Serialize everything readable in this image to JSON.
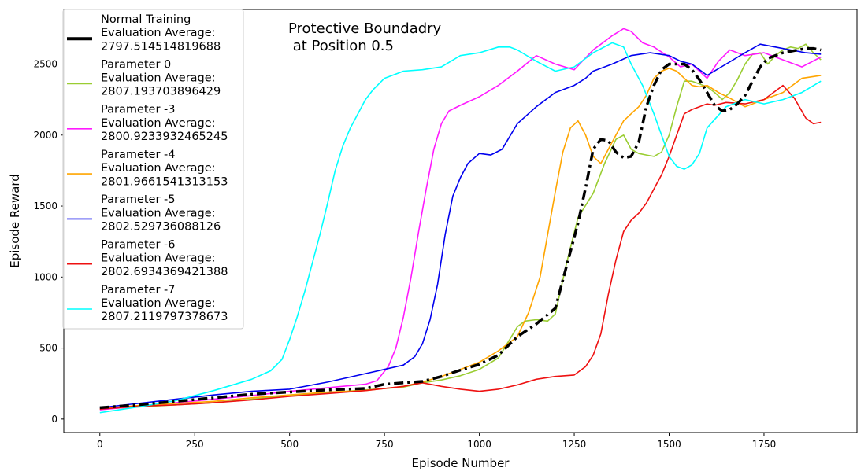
{
  "chart_data": {
    "type": "line",
    "title_lines": [
      "Protective Boundadry",
      " at Position 0.5"
    ],
    "xlabel": "Episode Number",
    "ylabel": "Episode Reward",
    "xlim": [
      -95,
      1995
    ],
    "ylim": [
      -95,
      2885
    ],
    "xticks": [
      0,
      250,
      500,
      750,
      1000,
      1250,
      1500,
      1750
    ],
    "yticks": [
      0,
      500,
      1000,
      1500,
      2000,
      2500
    ],
    "legend_position": "upper-left",
    "grid": false,
    "series": [
      {
        "name": "Normal Training",
        "legend_lines": [
          "Normal Training",
          " Evaluation Average:",
          "2797.514514819688"
        ],
        "color": "#000000",
        "style": "dashdot",
        "width": 3.5,
        "x": [
          0,
          100,
          200,
          300,
          400,
          500,
          600,
          700,
          750,
          800,
          850,
          900,
          950,
          1000,
          1050,
          1100,
          1150,
          1200,
          1230,
          1260,
          1280,
          1300,
          1320,
          1340,
          1360,
          1380,
          1400,
          1420,
          1440,
          1460,
          1480,
          1500,
          1520,
          1540,
          1560,
          1580,
          1600,
          1620,
          1640,
          1660,
          1680,
          1700,
          1720,
          1740,
          1760,
          1780,
          1800,
          1820,
          1840,
          1860,
          1880,
          1900
        ],
        "y": [
          80,
          100,
          125,
          150,
          175,
          190,
          205,
          215,
          245,
          255,
          265,
          300,
          345,
          385,
          450,
          580,
          670,
          780,
          1080,
          1380,
          1630,
          1900,
          1970,
          1960,
          1880,
          1840,
          1850,
          1950,
          2200,
          2350,
          2460,
          2500,
          2500,
          2500,
          2460,
          2390,
          2300,
          2210,
          2170,
          2180,
          2220,
          2280,
          2380,
          2480,
          2540,
          2560,
          2580,
          2590,
          2600,
          2610,
          2610,
          2600
        ]
      },
      {
        "name": "Parameter 0",
        "legend_lines": [
          "Parameter 0",
          " Evaluation Average:",
          "2807.193703896429"
        ],
        "color": "#9acd32",
        "style": "solid",
        "width": 1.6,
        "x": [
          0,
          100,
          200,
          300,
          400,
          500,
          600,
          700,
          800,
          850,
          900,
          950,
          1000,
          1050,
          1080,
          1100,
          1120,
          1150,
          1180,
          1200,
          1230,
          1260,
          1300,
          1330,
          1360,
          1380,
          1400,
          1420,
          1440,
          1460,
          1480,
          1500,
          1520,
          1540,
          1560,
          1580,
          1600,
          1620,
          1640,
          1660,
          1680,
          1700,
          1720,
          1740,
          1760,
          1780,
          1800,
          1820,
          1840,
          1860,
          1880,
          1900
        ],
        "y": [
          70,
          85,
          100,
          115,
          140,
          165,
          185,
          205,
          225,
          255,
          275,
          305,
          350,
          430,
          560,
          650,
          690,
          700,
          690,
          740,
          1100,
          1420,
          1590,
          1800,
          1970,
          2000,
          1900,
          1870,
          1860,
          1850,
          1880,
          2000,
          2200,
          2380,
          2380,
          2360,
          2340,
          2300,
          2250,
          2300,
          2390,
          2500,
          2570,
          2580,
          2500,
          2560,
          2600,
          2620,
          2610,
          2640,
          2580,
          2530
        ]
      },
      {
        "name": "Parameter -3",
        "legend_lines": [
          "Parameter -3",
          " Evaluation Average:",
          "2800.9233932465245"
        ],
        "color": "#ff1aff",
        "style": "solid",
        "width": 1.6,
        "x": [
          0,
          100,
          200,
          300,
          400,
          500,
          600,
          700,
          730,
          760,
          780,
          800,
          820,
          840,
          860,
          880,
          900,
          920,
          950,
          1000,
          1050,
          1100,
          1150,
          1200,
          1250,
          1300,
          1350,
          1380,
          1400,
          1430,
          1460,
          1500,
          1530,
          1560,
          1600,
          1630,
          1660,
          1700,
          1750,
          1800,
          1850,
          1900
        ],
        "y": [
          65,
          90,
          115,
          140,
          165,
          195,
          220,
          245,
          270,
          370,
          500,
          720,
          1000,
          1320,
          1620,
          1900,
          2080,
          2170,
          2210,
          2270,
          2350,
          2450,
          2560,
          2500,
          2460,
          2600,
          2700,
          2750,
          2730,
          2650,
          2620,
          2550,
          2480,
          2500,
          2400,
          2520,
          2600,
          2560,
          2580,
          2530,
          2480,
          2550
        ]
      },
      {
        "name": "Parameter -4",
        "legend_lines": [
          "Parameter -4",
          " Evaluation Average:",
          "2801.9661541313153"
        ],
        "color": "#ffa500",
        "style": "solid",
        "width": 1.6,
        "x": [
          0,
          100,
          200,
          300,
          400,
          500,
          600,
          700,
          750,
          800,
          850,
          900,
          950,
          1000,
          1050,
          1100,
          1130,
          1160,
          1180,
          1200,
          1220,
          1240,
          1260,
          1280,
          1300,
          1320,
          1340,
          1360,
          1380,
          1400,
          1420,
          1440,
          1460,
          1480,
          1500,
          1520,
          1540,
          1560,
          1580,
          1600,
          1630,
          1660,
          1700,
          1750,
          1800,
          1850,
          1900
        ],
        "y": [
          75,
          95,
          110,
          125,
          150,
          170,
          190,
          200,
          215,
          230,
          260,
          300,
          350,
          400,
          480,
          580,
          750,
          1000,
          1300,
          1600,
          1880,
          2050,
          2100,
          2000,
          1850,
          1800,
          1900,
          2000,
          2100,
          2150,
          2200,
          2280,
          2400,
          2450,
          2470,
          2450,
          2400,
          2350,
          2340,
          2350,
          2300,
          2260,
          2200,
          2250,
          2300,
          2400,
          2420
        ]
      },
      {
        "name": "Parameter -5",
        "legend_lines": [
          "Parameter -5",
          " Evaluation Average:",
          "2802.529736088126"
        ],
        "color": "#0000ee",
        "style": "solid",
        "width": 1.6,
        "x": [
          0,
          100,
          200,
          300,
          400,
          500,
          600,
          700,
          750,
          800,
          830,
          850,
          870,
          890,
          910,
          930,
          950,
          970,
          1000,
          1030,
          1060,
          1100,
          1150,
          1200,
          1250,
          1280,
          1300,
          1350,
          1400,
          1450,
          1500,
          1530,
          1560,
          1600,
          1650,
          1700,
          1740,
          1780,
          1820,
          1860,
          1900
        ],
        "y": [
          80,
          110,
          140,
          170,
          195,
          210,
          260,
          320,
          350,
          380,
          440,
          530,
          700,
          950,
          1300,
          1570,
          1700,
          1800,
          1870,
          1860,
          1900,
          2080,
          2200,
          2300,
          2350,
          2400,
          2450,
          2500,
          2560,
          2580,
          2560,
          2520,
          2500,
          2420,
          2500,
          2580,
          2640,
          2620,
          2600,
          2580,
          2570
        ]
      },
      {
        "name": "Parameter -6",
        "legend_lines": [
          "Parameter -6",
          " Evaluation Average:",
          "2802.6934369421388"
        ],
        "color": "#ee1111",
        "style": "solid",
        "width": 1.6,
        "x": [
          0,
          100,
          200,
          300,
          400,
          500,
          600,
          700,
          800,
          850,
          900,
          950,
          1000,
          1050,
          1100,
          1150,
          1200,
          1250,
          1280,
          1300,
          1320,
          1340,
          1360,
          1380,
          1400,
          1420,
          1440,
          1460,
          1480,
          1500,
          1520,
          1540,
          1560,
          1580,
          1600,
          1620,
          1650,
          1700,
          1750,
          1800,
          1830,
          1860,
          1880,
          1900
        ],
        "y": [
          70,
          90,
          100,
          115,
          135,
          160,
          180,
          200,
          230,
          255,
          230,
          210,
          195,
          210,
          240,
          280,
          300,
          310,
          370,
          450,
          600,
          880,
          1120,
          1320,
          1400,
          1450,
          1520,
          1620,
          1720,
          1850,
          2000,
          2150,
          2180,
          2200,
          2220,
          2210,
          2230,
          2220,
          2250,
          2350,
          2260,
          2120,
          2080,
          2090
        ]
      },
      {
        "name": "Parameter -7",
        "legend_lines": [
          "Parameter -7",
          " Evaluation Average:",
          "2807.2119797378673"
        ],
        "color": "#00ffff",
        "style": "solid",
        "width": 1.6,
        "x": [
          0,
          100,
          200,
          300,
          400,
          450,
          480,
          500,
          520,
          540,
          560,
          580,
          600,
          620,
          640,
          660,
          680,
          700,
          720,
          750,
          800,
          850,
          900,
          950,
          1000,
          1050,
          1080,
          1100,
          1150,
          1200,
          1250,
          1300,
          1350,
          1380,
          1400,
          1430,
          1460,
          1480,
          1500,
          1520,
          1540,
          1560,
          1580,
          1600,
          1650,
          1700,
          1750,
          1800,
          1850,
          1900
        ],
        "y": [
          45,
          85,
          130,
          200,
          280,
          340,
          420,
          560,
          720,
          900,
          1100,
          1300,
          1520,
          1750,
          1920,
          2050,
          2150,
          2250,
          2320,
          2400,
          2450,
          2460,
          2480,
          2560,
          2580,
          2620,
          2620,
          2600,
          2520,
          2450,
          2480,
          2580,
          2650,
          2620,
          2500,
          2350,
          2150,
          2000,
          1850,
          1780,
          1760,
          1790,
          1870,
          2050,
          2200,
          2250,
          2220,
          2250,
          2300,
          2380
        ]
      }
    ]
  }
}
